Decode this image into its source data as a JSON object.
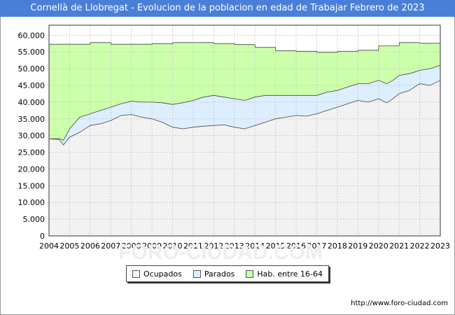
{
  "title": "Cornellà de Llobregat - Evolucion de la poblacion en edad de Trabajar Febrero de 2023",
  "source": "http://www.foro-ciudad.com",
  "watermark": "FORO-CIUDAD.COM",
  "colors": {
    "header": "#4a7fd8",
    "ocupados": "#f2f2f2",
    "parados": "#ddeeff",
    "hab": "#ccffaa"
  },
  "chart_data": {
    "type": "area",
    "x_ticks": [
      "2004",
      "2005",
      "2006",
      "2007",
      "2008",
      "2009",
      "2010",
      "2011",
      "2012",
      "2013",
      "2014",
      "2015",
      "2016",
      "2017",
      "2018",
      "2019",
      "2020",
      "2021",
      "2022",
      "2023"
    ],
    "y_ticks": [
      "0",
      "5.000",
      "10.000",
      "15.000",
      "20.000",
      "25.000",
      "30.000",
      "35.000",
      "40.000",
      "45.000",
      "50.000",
      "55.000",
      "60.000"
    ],
    "ylim": [
      0,
      63000
    ],
    "xlim": [
      2004,
      2023
    ],
    "grid": true,
    "legend_position": "bottom",
    "series": [
      {
        "name": "Ocupados",
        "color": "#f2f2f2",
        "points": [
          [
            2004,
            29000
          ],
          [
            2004.5,
            28800
          ],
          [
            2004.7,
            27200
          ],
          [
            2005,
            29500
          ],
          [
            2005.5,
            31000
          ],
          [
            2006,
            33000
          ],
          [
            2006.5,
            33500
          ],
          [
            2007,
            34500
          ],
          [
            2007.5,
            36000
          ],
          [
            2008,
            36300
          ],
          [
            2008.5,
            35500
          ],
          [
            2009,
            35000
          ],
          [
            2009.5,
            34000
          ],
          [
            2010,
            32500
          ],
          [
            2010.5,
            32000
          ],
          [
            2011,
            32500
          ],
          [
            2011.5,
            32800
          ],
          [
            2012,
            33000
          ],
          [
            2012.5,
            33200
          ],
          [
            2013,
            32500
          ],
          [
            2013.5,
            32000
          ],
          [
            2014,
            33000
          ],
          [
            2014.5,
            34000
          ],
          [
            2015,
            35000
          ],
          [
            2015.5,
            35500
          ],
          [
            2016,
            36000
          ],
          [
            2016.5,
            35800
          ],
          [
            2017,
            36500
          ],
          [
            2017.5,
            37500
          ],
          [
            2018,
            38500
          ],
          [
            2018.5,
            39500
          ],
          [
            2019,
            40500
          ],
          [
            2019.5,
            40000
          ],
          [
            2020,
            41000
          ],
          [
            2020.4,
            39800
          ],
          [
            2020.7,
            41000
          ],
          [
            2021,
            42500
          ],
          [
            2021.5,
            43500
          ],
          [
            2022,
            45500
          ],
          [
            2022.5,
            45000
          ],
          [
            2023,
            46500
          ]
        ]
      },
      {
        "name": "Parados",
        "color": "#ddeeff",
        "points": [
          [
            2004,
            29000
          ],
          [
            2004.5,
            29100
          ],
          [
            2004.7,
            28600
          ],
          [
            2005,
            32000
          ],
          [
            2005.5,
            35500
          ],
          [
            2006,
            36500
          ],
          [
            2006.5,
            37500
          ],
          [
            2007,
            38500
          ],
          [
            2007.5,
            39500
          ],
          [
            2008,
            40300
          ],
          [
            2008.5,
            40000
          ],
          [
            2009,
            40000
          ],
          [
            2009.5,
            39800
          ],
          [
            2010,
            39300
          ],
          [
            2010.5,
            39800
          ],
          [
            2011,
            40500
          ],
          [
            2011.5,
            41500
          ],
          [
            2012,
            42000
          ],
          [
            2012.5,
            41500
          ],
          [
            2013,
            41000
          ],
          [
            2013.5,
            40500
          ],
          [
            2014,
            41500
          ],
          [
            2014.5,
            42000
          ],
          [
            2015,
            42000
          ],
          [
            2015.5,
            42000
          ],
          [
            2016,
            42000
          ],
          [
            2016.5,
            42000
          ],
          [
            2017,
            42000
          ],
          [
            2017.5,
            43000
          ],
          [
            2018,
            43500
          ],
          [
            2018.5,
            44500
          ],
          [
            2019,
            45500
          ],
          [
            2019.5,
            45500
          ],
          [
            2020,
            46500
          ],
          [
            2020.4,
            45500
          ],
          [
            2020.7,
            46500
          ],
          [
            2021,
            48000
          ],
          [
            2021.5,
            48500
          ],
          [
            2022,
            49500
          ],
          [
            2022.5,
            50000
          ],
          [
            2023,
            51000
          ]
        ]
      },
      {
        "name": "Hab. entre 16-64",
        "color": "#ccffaa",
        "points": [
          [
            2004,
            57300
          ],
          [
            2006,
            57300
          ],
          [
            2006.01,
            57800
          ],
          [
            2007,
            57800
          ],
          [
            2007.01,
            57300
          ],
          [
            2009,
            57300
          ],
          [
            2009.01,
            57500
          ],
          [
            2010,
            57500
          ],
          [
            2010.01,
            57800
          ],
          [
            2012,
            57800
          ],
          [
            2012.01,
            57500
          ],
          [
            2013,
            57500
          ],
          [
            2013.01,
            57200
          ],
          [
            2014,
            57200
          ],
          [
            2014.01,
            56400
          ],
          [
            2015,
            56400
          ],
          [
            2015.01,
            55400
          ],
          [
            2016,
            55400
          ],
          [
            2016.01,
            55200
          ],
          [
            2017,
            55200
          ],
          [
            2017.01,
            54900
          ],
          [
            2018,
            54900
          ],
          [
            2018.01,
            55200
          ],
          [
            2019,
            55200
          ],
          [
            2019.01,
            55500
          ],
          [
            2020,
            55500
          ],
          [
            2020.01,
            56800
          ],
          [
            2021,
            56800
          ],
          [
            2021.01,
            57800
          ],
          [
            2022,
            57800
          ],
          [
            2022.01,
            57600
          ],
          [
            2023,
            57600
          ]
        ]
      }
    ]
  }
}
